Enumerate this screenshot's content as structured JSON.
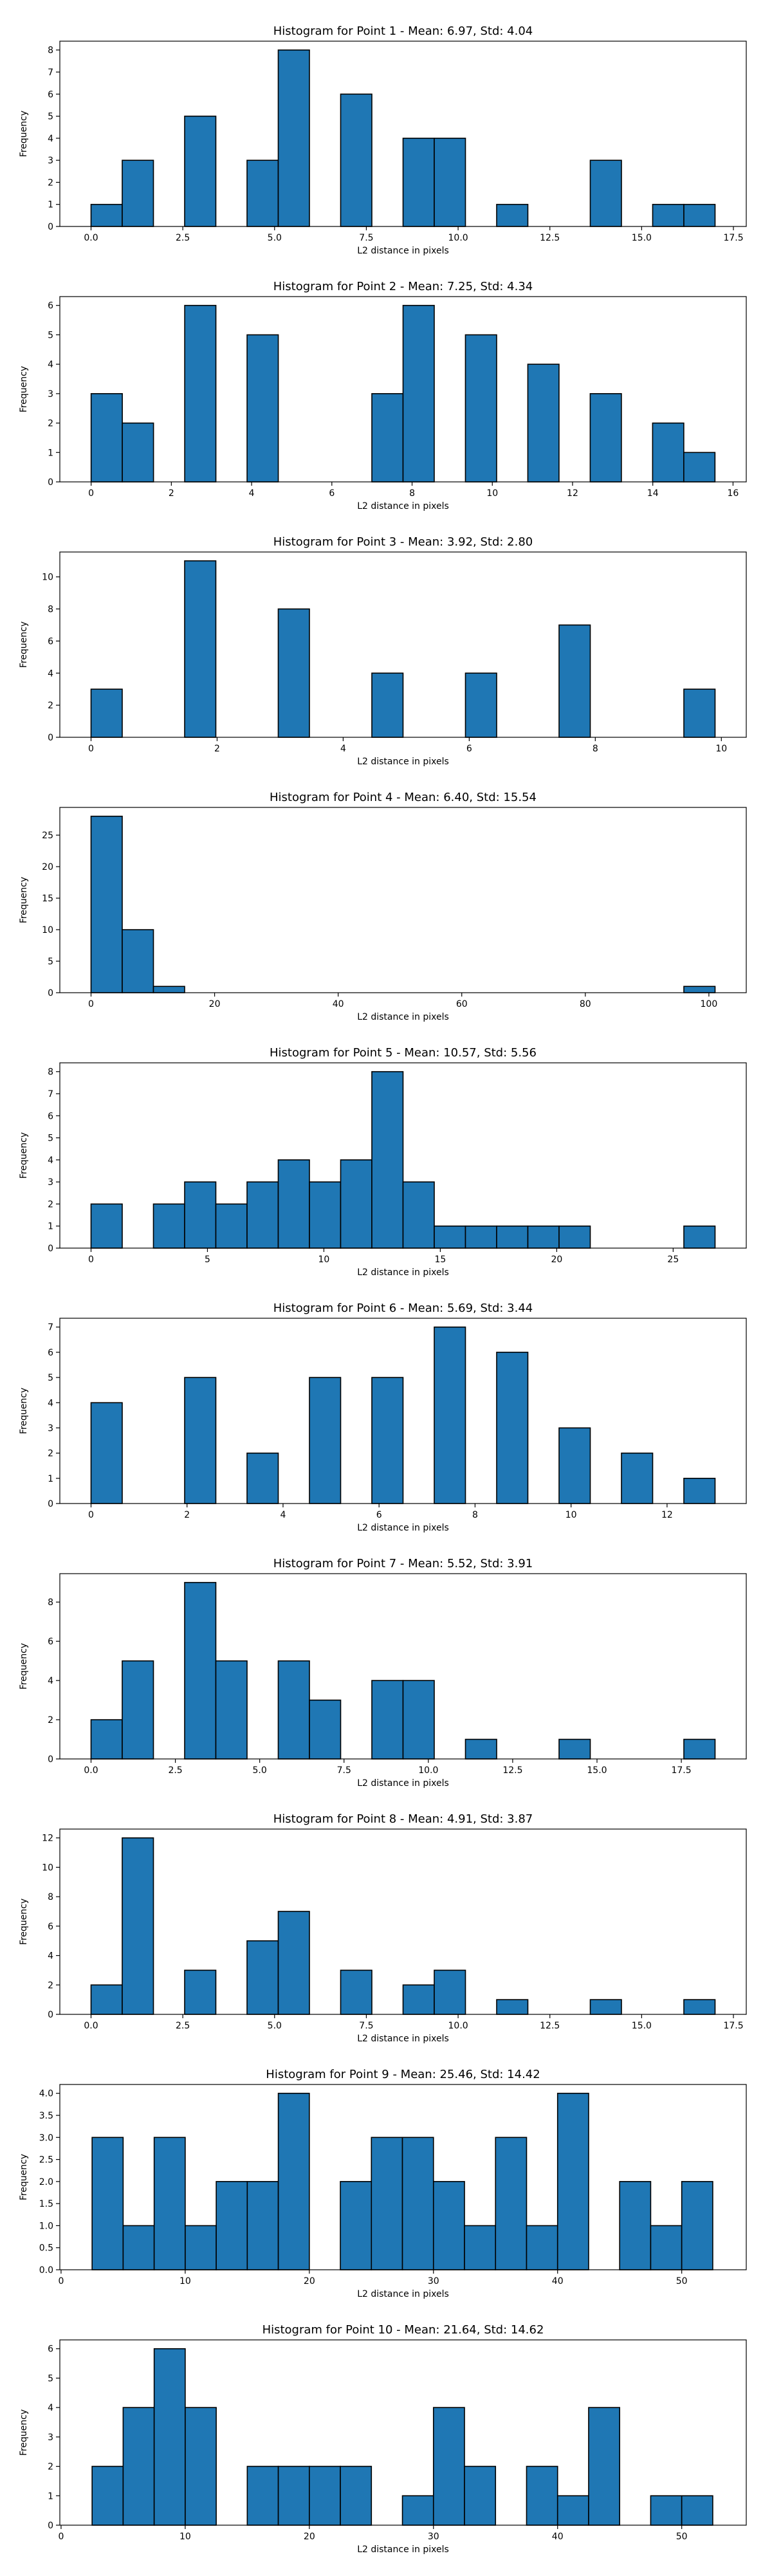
{
  "figure_title": "",
  "bar_color": "#1f77b4",
  "edge_color": "#000000",
  "chart_data": [
    {
      "type": "bar",
      "title": "Histogram for Point 1 - Mean: 6.97, Std: 4.04",
      "xlabel": "L2 distance in pixels",
      "ylabel": "Frequency",
      "xlim": [
        -0.85,
        17.85
      ],
      "ylim": [
        0,
        8.4
      ],
      "xticks": [
        0.0,
        2.5,
        5.0,
        7.5,
        10.0,
        12.5,
        15.0,
        17.5
      ],
      "xtick_labels": [
        "0.0",
        "2.5",
        "5.0",
        "7.5",
        "10.0",
        "12.5",
        "15.0",
        "17.5"
      ],
      "yticks": [
        0,
        1,
        2,
        3,
        4,
        5,
        6,
        7,
        8
      ],
      "ytick_labels": [
        "0",
        "1",
        "2",
        "3",
        "4",
        "5",
        "6",
        "7",
        "8"
      ],
      "bin_start": 0.0,
      "bin_width": 0.85,
      "values": [
        1,
        3,
        0,
        5,
        0,
        3,
        8,
        0,
        6,
        0,
        4,
        4,
        0,
        1,
        0,
        0,
        3,
        0,
        1,
        1
      ]
    },
    {
      "type": "bar",
      "title": "Histogram for Point 2 - Mean: 7.25, Std: 4.34",
      "xlabel": "L2 distance in pixels",
      "ylabel": "Frequency",
      "xlim": [
        -0.78,
        16.33
      ],
      "ylim": [
        0,
        6.3
      ],
      "xticks": [
        0,
        2,
        4,
        6,
        8,
        10,
        12,
        14,
        16
      ],
      "xtick_labels": [
        "0",
        "2",
        "4",
        "6",
        "8",
        "10",
        "12",
        "14",
        "16"
      ],
      "yticks": [
        0,
        1,
        2,
        3,
        4,
        5,
        6
      ],
      "ytick_labels": [
        "0",
        "1",
        "2",
        "3",
        "4",
        "5",
        "6"
      ],
      "bin_start": 0.0,
      "bin_width": 0.7775,
      "values": [
        3,
        2,
        0,
        6,
        0,
        5,
        0,
        0,
        0,
        3,
        6,
        0,
        5,
        0,
        4,
        0,
        3,
        0,
        2,
        1
      ]
    },
    {
      "type": "bar",
      "title": "Histogram for Point 3 - Mean: 3.92, Std: 2.80",
      "xlabel": "L2 distance in pixels",
      "ylabel": "Frequency",
      "xlim": [
        -0.495,
        10.395
      ],
      "ylim": [
        0,
        11.55
      ],
      "xticks": [
        0,
        2,
        4,
        6,
        8,
        10
      ],
      "xtick_labels": [
        "0",
        "2",
        "4",
        "6",
        "8",
        "10"
      ],
      "yticks": [
        0,
        2,
        4,
        6,
        8,
        10
      ],
      "ytick_labels": [
        "0",
        "2",
        "4",
        "6",
        "8",
        "10"
      ],
      "bin_start": 0.0,
      "bin_width": 0.495,
      "values": [
        3,
        0,
        0,
        11,
        0,
        0,
        8,
        0,
        0,
        4,
        0,
        0,
        4,
        0,
        0,
        7,
        0,
        0,
        0,
        3
      ]
    },
    {
      "type": "bar",
      "title": "Histogram for Point 4 - Mean: 6.40, Std: 15.54",
      "xlabel": "L2 distance in pixels",
      "ylabel": "Frequency",
      "xlim": [
        -5.05,
        106.05
      ],
      "ylim": [
        0,
        29.4
      ],
      "xticks": [
        0,
        20,
        40,
        60,
        80,
        100
      ],
      "xtick_labels": [
        "0",
        "20",
        "40",
        "60",
        "80",
        "100"
      ],
      "yticks": [
        0,
        5,
        10,
        15,
        20,
        25
      ],
      "ytick_labels": [
        "0",
        "5",
        "10",
        "15",
        "20",
        "25"
      ],
      "bin_start": 0.0,
      "bin_width": 5.05,
      "values": [
        28,
        10,
        1,
        0,
        0,
        0,
        0,
        0,
        0,
        0,
        0,
        0,
        0,
        0,
        0,
        0,
        0,
        0,
        0,
        1
      ]
    },
    {
      "type": "bar",
      "title": "Histogram for Point 5 - Mean: 10.57, Std: 5.56",
      "xlabel": "L2 distance in pixels",
      "ylabel": "Frequency",
      "xlim": [
        -1.34,
        28.14
      ],
      "ylim": [
        0,
        8.4
      ],
      "xticks": [
        0,
        5,
        10,
        15,
        20,
        25
      ],
      "xtick_labels": [
        "0",
        "5",
        "10",
        "15",
        "20",
        "25"
      ],
      "yticks": [
        0,
        1,
        2,
        3,
        4,
        5,
        6,
        7,
        8
      ],
      "ytick_labels": [
        "0",
        "1",
        "2",
        "3",
        "4",
        "5",
        "6",
        "7",
        "8"
      ],
      "bin_start": 0.0,
      "bin_width": 1.34,
      "values": [
        2,
        0,
        2,
        3,
        2,
        3,
        4,
        3,
        4,
        8,
        3,
        1,
        1,
        1,
        1,
        1,
        0,
        0,
        0,
        1
      ]
    },
    {
      "type": "bar",
      "title": "Histogram for Point 6 - Mean: 5.69, Std: 3.44",
      "xlabel": "L2 distance in pixels",
      "ylabel": "Frequency",
      "xlim": [
        -0.65,
        13.65
      ],
      "ylim": [
        0,
        7.35
      ],
      "xticks": [
        0,
        2,
        4,
        6,
        8,
        10,
        12
      ],
      "xtick_labels": [
        "0",
        "2",
        "4",
        "6",
        "8",
        "10",
        "12"
      ],
      "yticks": [
        0,
        1,
        2,
        3,
        4,
        5,
        6,
        7
      ],
      "ytick_labels": [
        "0",
        "1",
        "2",
        "3",
        "4",
        "5",
        "6",
        "7"
      ],
      "bin_start": 0.0,
      "bin_width": 0.65,
      "values": [
        4,
        0,
        0,
        5,
        0,
        2,
        0,
        5,
        0,
        5,
        0,
        7,
        0,
        6,
        0,
        3,
        0,
        2,
        0,
        1
      ]
    },
    {
      "type": "bar",
      "title": "Histogram for Point 7 - Mean: 5.52, Std: 3.91",
      "xlabel": "L2 distance in pixels",
      "ylabel": "Frequency",
      "xlim": [
        -0.925,
        19.425
      ],
      "ylim": [
        0,
        9.45
      ],
      "xticks": [
        0.0,
        2.5,
        5.0,
        7.5,
        10.0,
        12.5,
        15.0,
        17.5
      ],
      "xtick_labels": [
        "0.0",
        "2.5",
        "5.0",
        "7.5",
        "10.0",
        "12.5",
        "15.0",
        "17.5"
      ],
      "yticks": [
        0,
        2,
        4,
        6,
        8
      ],
      "ytick_labels": [
        "0",
        "2",
        "4",
        "6",
        "8"
      ],
      "bin_start": 0.0,
      "bin_width": 0.925,
      "values": [
        2,
        5,
        0,
        9,
        5,
        0,
        5,
        3,
        0,
        4,
        4,
        0,
        1,
        0,
        0,
        1,
        0,
        0,
        0,
        1
      ]
    },
    {
      "type": "bar",
      "title": "Histogram for Point 8 - Mean: 4.91, Std: 3.87",
      "xlabel": "L2 distance in pixels",
      "ylabel": "Frequency",
      "xlim": [
        -0.85,
        17.85
      ],
      "ylim": [
        0,
        12.6
      ],
      "xticks": [
        0.0,
        2.5,
        5.0,
        7.5,
        10.0,
        12.5,
        15.0,
        17.5
      ],
      "xtick_labels": [
        "0.0",
        "2.5",
        "5.0",
        "7.5",
        "10.0",
        "12.5",
        "15.0",
        "17.5"
      ],
      "yticks": [
        0,
        2,
        4,
        6,
        8,
        10,
        12
      ],
      "ytick_labels": [
        "0",
        "2",
        "4",
        "6",
        "8",
        "10",
        "12"
      ],
      "bin_start": 0.0,
      "bin_width": 0.85,
      "values": [
        2,
        12,
        0,
        3,
        0,
        5,
        7,
        0,
        3,
        0,
        2,
        3,
        0,
        1,
        0,
        0,
        1,
        0,
        0,
        1
      ]
    },
    {
      "type": "bar",
      "title": "Histogram for Point 9 - Mean: 25.46, Std: 14.42",
      "xlabel": "L2 distance in pixels",
      "ylabel": "Frequency",
      "xlim": [
        -0.1,
        55.2
      ],
      "ylim": [
        0,
        4.2
      ],
      "xticks": [
        0,
        10,
        20,
        30,
        40,
        50
      ],
      "xtick_labels": [
        "0",
        "10",
        "20",
        "30",
        "40",
        "50"
      ],
      "yticks": [
        0.0,
        0.5,
        1.0,
        1.5,
        2.0,
        2.5,
        3.0,
        3.5,
        4.0
      ],
      "ytick_labels": [
        "0.0",
        "0.5",
        "1.0",
        "1.5",
        "2.0",
        "2.5",
        "3.0",
        "3.5",
        "4.0"
      ],
      "bin_start": 2.5,
      "bin_width": 2.5,
      "values": [
        3,
        1,
        3,
        1,
        2,
        2,
        4,
        0,
        2,
        3,
        3,
        2,
        1,
        3,
        1,
        4,
        0,
        2,
        1,
        2
      ]
    },
    {
      "type": "bar",
      "title": "Histogram for Point 10 - Mean: 21.64, Std: 14.62",
      "xlabel": "L2 distance in pixels",
      "ylabel": "Frequency",
      "xlim": [
        -0.1,
        55.2
      ],
      "ylim": [
        0,
        6.3
      ],
      "xticks": [
        0,
        10,
        20,
        30,
        40,
        50
      ],
      "xtick_labels": [
        "0",
        "10",
        "20",
        "30",
        "40",
        "50"
      ],
      "yticks": [
        0,
        1,
        2,
        3,
        4,
        5,
        6
      ],
      "ytick_labels": [
        "0",
        "1",
        "2",
        "3",
        "4",
        "5",
        "6"
      ],
      "bin_start": 2.5,
      "bin_width": 2.5,
      "values": [
        2,
        4,
        6,
        4,
        0,
        2,
        2,
        2,
        2,
        0,
        1,
        4,
        2,
        0,
        2,
        1,
        4,
        0,
        1,
        1
      ]
    }
  ]
}
